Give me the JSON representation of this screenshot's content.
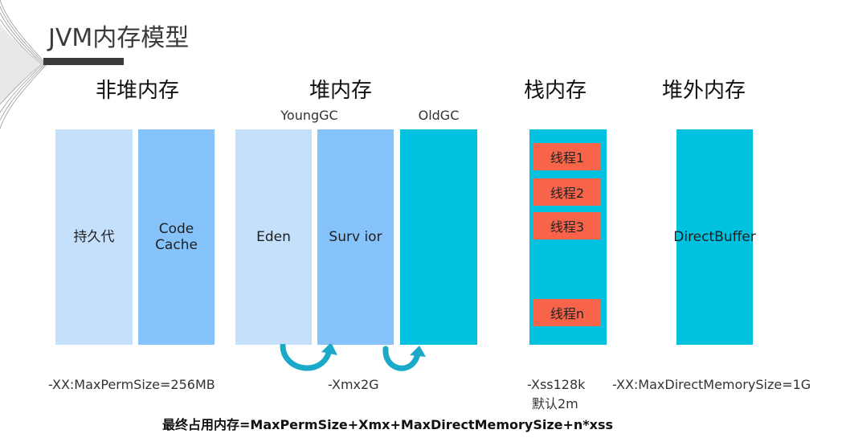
{
  "title": "JVM内存模型",
  "sections": {
    "non_heap": "非堆内存",
    "heap": "堆内存",
    "stack": "栈内存",
    "off_heap": "堆外内存"
  },
  "gc": {
    "young": "YoungGC",
    "old": "OldGC"
  },
  "blocks": {
    "perm_gen": "持久代",
    "code_cache_line1": "Code",
    "code_cache_line2": "Cache",
    "eden": "Eden",
    "survivor": "Surv ior",
    "old": "",
    "direct_buffer": "DirectBuffer"
  },
  "threads": [
    "线程1",
    "线程2",
    "线程3",
    "线程n"
  ],
  "params": {
    "perm": "-XX:MaxPermSize=256MB",
    "heap": "-Xmx2G",
    "stack_line1": "-Xss128k",
    "stack_line2": "默认2m",
    "direct": "-XX:MaxDirectMemorySize=1G"
  },
  "formula": "最终占用内存=MaxPermSize+Xmx+MaxDirectMemorySize+n*xss",
  "colors": {
    "light_blue": "#c4e0fb",
    "mid_blue": "#86c3fa",
    "cyan": "#00c1df",
    "thread_red": "#f86449",
    "arrow": "#1aa9c9"
  }
}
